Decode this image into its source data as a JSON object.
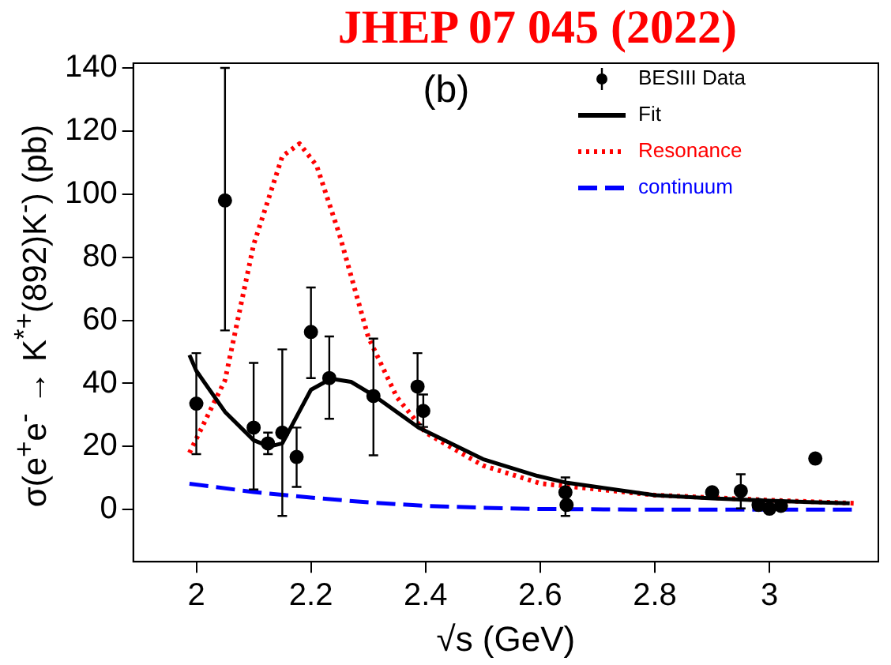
{
  "chart_data": {
    "type": "scatter",
    "xlabel": "√s (GeV)",
    "ylabel": "σ(e$^{+}$e$^{-}$ → K$^{*+}$(892)K$^{-}$) (pb)",
    "annotations": [
      "(b)",
      "JHEP 07 045 (2022)"
    ],
    "xlim": [
      1.89,
      3.19
    ],
    "xticks": [
      2,
      2.2,
      2.4,
      2.6,
      2.8,
      3
    ],
    "ylim": [
      -16.5,
      141.5
    ],
    "yticks": [
      0,
      20,
      40,
      60,
      80,
      100,
      120,
      140
    ],
    "grid": false,
    "legend": "top right",
    "series": [
      {
        "name": "BESIII Data",
        "type": "scatter",
        "marker": "circle",
        "color": "#000000",
        "x": [
          2.0,
          2.05,
          2.1,
          2.125,
          2.15,
          2.175,
          2.2,
          2.232,
          2.309,
          2.386,
          2.396,
          2.644,
          2.646,
          2.9,
          2.95,
          2.981,
          3.0,
          3.02,
          3.08
        ],
        "values": [
          33.6,
          98,
          26,
          21,
          24.4,
          16.7,
          56.3,
          41.7,
          36,
          39,
          31.3,
          5.5,
          1.5,
          5.5,
          5.9,
          1.5,
          0.3,
          1.2,
          16.2
        ],
        "errors": [
          [
            17.6,
            49.6
          ],
          [
            56.8,
            140
          ],
          [
            6.4,
            46.5
          ],
          [
            17.6,
            24.4
          ],
          [
            -2,
            50.8
          ],
          [
            7.2,
            26
          ],
          [
            41.7,
            70.4
          ],
          [
            28.8,
            54.9
          ],
          [
            17.2,
            54.2
          ],
          [
            27,
            49.6
          ],
          [
            26.2,
            36.5
          ],
          [
            -2,
            10.2
          ],
          null,
          null,
          [
            0.4,
            11.2
          ],
          null,
          null,
          null,
          null
        ]
      },
      {
        "name": "Fit",
        "type": "line",
        "marker": "none",
        "line_style": "solid",
        "color": "#000000",
        "x": [
          1.988,
          2.0,
          2.05,
          2.1,
          2.127,
          2.15,
          2.2,
          2.235,
          2.27,
          2.311,
          2.388,
          2.5,
          2.595,
          2.647,
          2.8,
          2.9,
          3.0,
          3.14
        ],
        "values": [
          49,
          44,
          31,
          22,
          20,
          21,
          38,
          41.5,
          40.5,
          36,
          26,
          16,
          10.7,
          8.5,
          4.6,
          3.6,
          2.8,
          2
        ]
      },
      {
        "name": "Resonance",
        "type": "line",
        "marker": "none",
        "line_style": "dotted",
        "color": "#ff0000",
        "x": [
          1.988,
          2.05,
          2.1,
          2.15,
          2.18,
          2.21,
          2.25,
          2.3,
          2.35,
          2.4,
          2.5,
          2.6,
          2.8,
          3.0,
          3.15
        ],
        "values": [
          18,
          41,
          84,
          112,
          116,
          109,
          87,
          54.7,
          35.6,
          24.4,
          14,
          8.3,
          4.6,
          3,
          2
        ]
      },
      {
        "name": "continuum",
        "type": "line",
        "marker": "none",
        "line_style": "dashed",
        "color": "#0000ff",
        "x": [
          1.988,
          2.1,
          2.2,
          2.3,
          2.4,
          2.5,
          2.6,
          2.8,
          3.0,
          3.15
        ],
        "values": [
          8.2,
          5.6,
          3.8,
          2.3,
          1.2,
          0.6,
          0.2,
          0,
          0,
          0
        ]
      }
    ]
  }
}
